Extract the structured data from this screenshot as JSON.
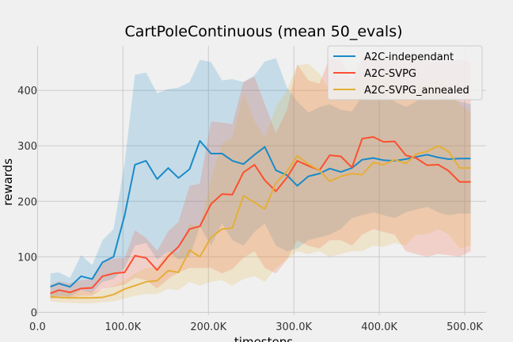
{
  "chart_data": {
    "type": "line",
    "title": "CartPoleContinuous (mean 50_evals)",
    "xlabel": "timesteps",
    "ylabel": "rewards",
    "xlim": [
      -5000,
      525000
    ],
    "ylim": [
      -5,
      480
    ],
    "grid": true,
    "legend_position": "top-right",
    "x_ticks": [
      0,
      100000,
      200000,
      300000,
      400000,
      500000
    ],
    "x_tick_labels": [
      "0.0",
      "100.0K",
      "200.0K",
      "300.0K",
      "400.0K",
      "500.0K"
    ],
    "y_ticks": [
      0,
      100,
      200,
      300,
      400
    ],
    "y_tick_labels": [
      "0",
      "100",
      "200",
      "300",
      "400"
    ],
    "x": [
      15000,
      25000,
      38000,
      51000,
      64000,
      76000,
      89000,
      102000,
      114000,
      127000,
      140000,
      153000,
      165000,
      178000,
      190000,
      203000,
      216000,
      228000,
      241000,
      254000,
      266000,
      279000,
      292000,
      304000,
      317000,
      330000,
      342000,
      355000,
      368000,
      380000,
      393000,
      405000,
      418000,
      431000,
      443000,
      456000,
      469000,
      481000,
      494000,
      507000
    ],
    "series": [
      {
        "name": "A2C-independant",
        "color": "#1a8ac8",
        "band_color": "#1a8ac8",
        "values": [
          46,
          52,
          46,
          65,
          60,
          90,
          100,
          175,
          266,
          273,
          240,
          260,
          242,
          258,
          309,
          286,
          286,
          273,
          267,
          284,
          298,
          256,
          247,
          228,
          245,
          250,
          259,
          253,
          260,
          275,
          278,
          274,
          273,
          276,
          280,
          284,
          279,
          276,
          277,
          277
        ],
        "upper": [
          70,
          72,
          62,
          103,
          85,
          130,
          150,
          270,
          428,
          432,
          395,
          402,
          405,
          415,
          455,
          451,
          418,
          420,
          415,
          427,
          452,
          458,
          405,
          380,
          360,
          370,
          375,
          365,
          362,
          390,
          400,
          395,
          380,
          370,
          380,
          395,
          395,
          385,
          380,
          375
        ],
        "lower": [
          26,
          30,
          28,
          40,
          35,
          55,
          60,
          80,
          120,
          125,
          95,
          110,
          95,
          100,
          155,
          120,
          160,
          130,
          120,
          145,
          160,
          120,
          110,
          115,
          130,
          135,
          140,
          150,
          170,
          175,
          180,
          175,
          170,
          180,
          185,
          190,
          180,
          175,
          178,
          178
        ]
      },
      {
        "name": "A2C-SVPG",
        "color": "#fc4f30",
        "band_color": "#fc4f30",
        "values": [
          34,
          40,
          36,
          43,
          44,
          65,
          70,
          72,
          102,
          98,
          76,
          101,
          118,
          150,
          155,
          195,
          213,
          212,
          252,
          266,
          238,
          218,
          243,
          273,
          264,
          256,
          283,
          281,
          261,
          313,
          316,
          307,
          308,
          283,
          278,
          265,
          266,
          255,
          235,
          235
        ],
        "upper": [
          50,
          56,
          52,
          58,
          60,
          90,
          97,
          98,
          148,
          134,
          111,
          146,
          163,
          228,
          232,
          344,
          342,
          339,
          415,
          424,
          375,
          323,
          365,
          447,
          418,
          412,
          459,
          454,
          420,
          460,
          462,
          457,
          460,
          458,
          455,
          452,
          452,
          452,
          455,
          452
        ],
        "lower": [
          24,
          28,
          25,
          30,
          30,
          42,
          46,
          50,
          62,
          58,
          43,
          60,
          72,
          80,
          80,
          80,
          70,
          78,
          98,
          110,
          80,
          70,
          95,
          130,
          120,
          115,
          130,
          130,
          120,
          140,
          150,
          145,
          140,
          110,
          105,
          100,
          105,
          103,
          100,
          110
        ]
      },
      {
        "name": "A2C-SVPG_annealed",
        "color": "#e5ae38",
        "band_color": "#e5ae38",
        "values": [
          28,
          27,
          26,
          26,
          26,
          27,
          32,
          42,
          48,
          55,
          57,
          75,
          72,
          112,
          100,
          135,
          150,
          152,
          210,
          198,
          186,
          233,
          254,
          282,
          267,
          256,
          236,
          245,
          250,
          248,
          270,
          266,
          275,
          268,
          285,
          290,
          300,
          290,
          260,
          260
        ],
        "upper": [
          38,
          36,
          36,
          38,
          38,
          40,
          48,
          58,
          70,
          80,
          82,
          110,
          105,
          160,
          155,
          240,
          305,
          315,
          395,
          345,
          315,
          370,
          400,
          445,
          448,
          430,
          400,
          420,
          420,
          425,
          425,
          440,
          425,
          395,
          410,
          415,
          420,
          405,
          375,
          360
        ],
        "lower": [
          20,
          18,
          17,
          16,
          16,
          18,
          20,
          25,
          30,
          33,
          33,
          42,
          40,
          55,
          48,
          55,
          58,
          48,
          60,
          65,
          55,
          80,
          95,
          110,
          105,
          110,
          100,
          105,
          110,
          110,
          120,
          118,
          125,
          120,
          140,
          140,
          150,
          140,
          115,
          120
        ]
      }
    ]
  }
}
